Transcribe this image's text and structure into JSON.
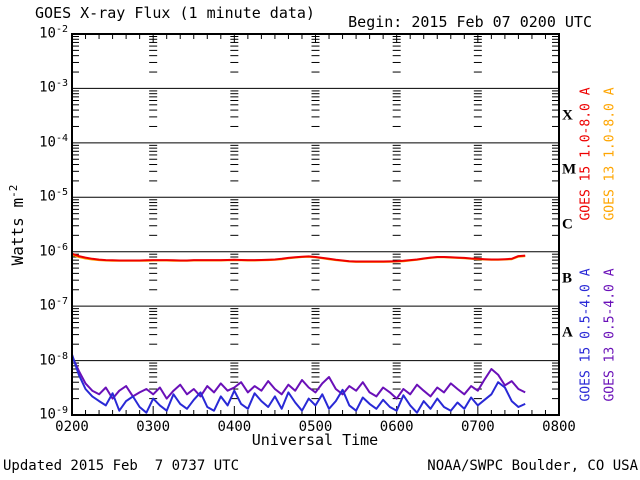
{
  "header": {
    "title": "GOES X-ray Flux (1 minute data)",
    "begin_label": "Begin: 2015 Feb 07 0200 UTC"
  },
  "footer": {
    "updated_label": "Updated 2015 Feb  7 0737 UTC",
    "credit_label": "NOAA/SWPC Boulder, CO USA"
  },
  "colors": {
    "goes15_long": "#ee0000",
    "goes13_long": "#ffa500",
    "goes15_short": "#2929d6",
    "goes13_short": "#6a10b8",
    "axis": "#000000",
    "background": "#ffffff"
  },
  "flux_classes": [
    "X",
    "M",
    "C",
    "B",
    "A"
  ],
  "chart_data": {
    "type": "line",
    "title": "GOES X-ray Flux (1 minute data)",
    "xlabel": "Universal Time",
    "ylabel": "Watts m^-2",
    "yscale": "log",
    "ylim": [
      1e-09,
      0.01
    ],
    "grid": "horizontal solid lines at each decade; log minor ticks repeated at each hour",
    "x_tick_labels": [
      "0200",
      "0300",
      "0400",
      "0500",
      "0600",
      "0700",
      "0800"
    ],
    "y_tick_exponents": [
      -2,
      -3,
      -4,
      -5,
      -6,
      -7,
      -8,
      -9
    ],
    "x_span_minutes": 360,
    "x_start_minute": 0,
    "x_step_minutes": 5,
    "legend_position": "right side, rotated labels",
    "series": [
      {
        "name": "GOES 13 1.0-8.0 A",
        "color": "#ffa500",
        "values": [
          8.8e-07,
          8e-07,
          7.5e-07,
          7.2e-07,
          7e-07,
          6.9e-07,
          6.85e-07,
          6.8e-07,
          6.8e-07,
          6.8e-07,
          6.8e-07,
          6.85e-07,
          6.9e-07,
          6.9e-07,
          6.9e-07,
          6.85e-07,
          6.8e-07,
          6.8e-07,
          6.9e-07,
          6.9e-07,
          6.9e-07,
          6.9e-07,
          6.9e-07,
          6.95e-07,
          7e-07,
          6.95e-07,
          6.9e-07,
          6.9e-07,
          6.95e-07,
          7e-07,
          7.1e-07,
          7.3e-07,
          7.6e-07,
          7.8e-07,
          8e-07,
          8.1e-07,
          7.9e-07,
          7.6e-07,
          7.3e-07,
          7e-07,
          6.8e-07,
          6.6e-07,
          6.5e-07,
          6.5e-07,
          6.5e-07,
          6.5e-07,
          6.5e-07,
          6.55e-07,
          6.6e-07,
          6.7e-07,
          6.9e-07,
          7.1e-07,
          7.4e-07,
          7.7e-07,
          7.9e-07,
          7.9e-07,
          7.8e-07,
          7.7e-07,
          7.6e-07,
          7.4e-07,
          7.3e-07,
          7.2e-07,
          7.1e-07,
          7.1e-07,
          7.2e-07,
          7.3e-07,
          8.1e-07,
          8.3e-07
        ]
      },
      {
        "name": "GOES 15 1.0-8.0 A",
        "color": "#ee0000",
        "values": [
          9.2e-07,
          8.3e-07,
          7.8e-07,
          7.4e-07,
          7.15e-07,
          7e-07,
          6.95e-07,
          6.9e-07,
          6.9e-07,
          6.9e-07,
          6.9e-07,
          6.95e-07,
          7e-07,
          7e-07,
          7e-07,
          6.95e-07,
          6.9e-07,
          6.9e-07,
          7e-07,
          7e-07,
          7e-07,
          7e-07,
          7e-07,
          7.05e-07,
          7.1e-07,
          7.05e-07,
          7e-07,
          7e-07,
          7.05e-07,
          7.1e-07,
          7.2e-07,
          7.4e-07,
          7.7e-07,
          7.9e-07,
          8.1e-07,
          8.2e-07,
          8e-07,
          7.7e-07,
          7.4e-07,
          7.1e-07,
          6.9e-07,
          6.7e-07,
          6.6e-07,
          6.6e-07,
          6.6e-07,
          6.6e-07,
          6.6e-07,
          6.65e-07,
          6.7e-07,
          6.8e-07,
          7e-07,
          7.2e-07,
          7.5e-07,
          7.8e-07,
          8e-07,
          8e-07,
          7.9e-07,
          7.8e-07,
          7.7e-07,
          7.5e-07,
          7.4e-07,
          7.3e-07,
          7.2e-07,
          7.2e-07,
          7.3e-07,
          7.4e-07,
          8.3e-07,
          8.5e-07
        ]
      },
      {
        "name": "GOES 13 0.5-4.0 A",
        "color": "#6a10b8",
        "values": [
          1.2e-08,
          6.5e-09,
          3.8e-09,
          2.8e-09,
          2.4e-09,
          3.2e-09,
          2e-09,
          2.8e-09,
          3.4e-09,
          2.2e-09,
          2.6e-09,
          3e-09,
          2.4e-09,
          3.2e-09,
          2e-09,
          2.8e-09,
          3.6e-09,
          2.4e-09,
          3e-09,
          2.2e-09,
          3.4e-09,
          2.6e-09,
          3.8e-09,
          2.8e-09,
          3.2e-09,
          4e-09,
          2.6e-09,
          3.4e-09,
          2.8e-09,
          4.2e-09,
          3e-09,
          2.4e-09,
          3.6e-09,
          2.8e-09,
          4.4e-09,
          3.2e-09,
          2.6e-09,
          3.8e-09,
          5e-09,
          3e-09,
          2.4e-09,
          3.4e-09,
          2.8e-09,
          4e-09,
          2.6e-09,
          2.2e-09,
          3.2e-09,
          2.6e-09,
          2e-09,
          3e-09,
          2.4e-09,
          3.6e-09,
          2.8e-09,
          2.2e-09,
          3.2e-09,
          2.6e-09,
          3.8e-09,
          3e-09,
          2.4e-09,
          3.4e-09,
          2.8e-09,
          4.5e-09,
          7e-09,
          5.5e-09,
          3.5e-09,
          4.2e-09,
          3e-09,
          2.6e-09
        ]
      },
      {
        "name": "GOES 15 0.5-4.0 A",
        "color": "#2929d6",
        "values": [
          1.3e-08,
          5.5e-09,
          3e-09,
          2.2e-09,
          1.8e-09,
          1.5e-09,
          2.5e-09,
          1.2e-09,
          1.8e-09,
          2.2e-09,
          1.4e-09,
          1.1e-09,
          2e-09,
          1.5e-09,
          1.2e-09,
          2.4e-09,
          1.6e-09,
          1.3e-09,
          1.9e-09,
          2.6e-09,
          1.4e-09,
          1.2e-09,
          2.2e-09,
          1.5e-09,
          2.8e-09,
          1.6e-09,
          1.3e-09,
          2.5e-09,
          1.8e-09,
          1.4e-09,
          2.2e-09,
          1.3e-09,
          2.6e-09,
          1.7e-09,
          1.2e-09,
          2e-09,
          1.5e-09,
          2.4e-09,
          1.3e-09,
          1.8e-09,
          2.9e-09,
          1.5e-09,
          1.2e-09,
          2.1e-09,
          1.6e-09,
          1.3e-09,
          1.9e-09,
          1.4e-09,
          1.2e-09,
          2.3e-09,
          1.5e-09,
          1.1e-09,
          1.8e-09,
          1.3e-09,
          2e-09,
          1.4e-09,
          1.2e-09,
          1.7e-09,
          1.3e-09,
          2.1e-09,
          1.5e-09,
          1.9e-09,
          2.4e-09,
          4e-09,
          3.2e-09,
          1.8e-09,
          1.4e-09,
          1.6e-09
        ]
      }
    ],
    "legend": [
      {
        "label": "GOES 15 1.0-8.0 A",
        "color": "#ee0000"
      },
      {
        "label": "GOES 13 1.0-8.0 A",
        "color": "#ffa500"
      },
      {
        "label": "GOES 15 0.5-4.0 A",
        "color": "#2929d6"
      },
      {
        "label": "GOES 13 0.5-4.0 A",
        "color": "#6a10b8"
      }
    ],
    "ylabel_base": "Watts m",
    "ylabel_exponent": "-2"
  }
}
